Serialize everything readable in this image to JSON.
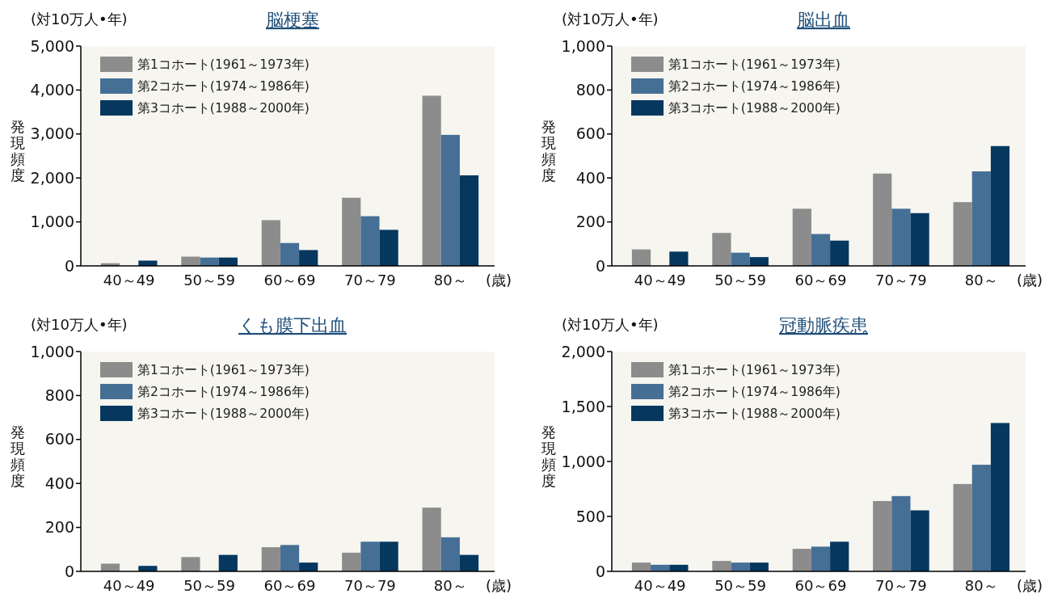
{
  "chart_data": [
    {
      "type": "bar",
      "title": "脳梗塞",
      "ylabel": "発現頻度",
      "xlabel": "(歳)",
      "annotations": [
        "(対10万人•年)"
      ],
      "categories": [
        "40～49",
        "50～59",
        "60～69",
        "70～79",
        "80～"
      ],
      "ylim": [
        0,
        5000
      ],
      "yticks": [
        {
          "value": 0,
          "label": "0"
        },
        {
          "value": 1000,
          "label": "1,000"
        },
        {
          "value": 2000,
          "label": "2,000"
        },
        {
          "value": 3000,
          "label": "3,000"
        },
        {
          "value": 4000,
          "label": "4,000"
        },
        {
          "value": 5000,
          "label": "5,000"
        }
      ],
      "legend": "top left",
      "series": [
        {
          "name": "第1コホート(1961～1973年)",
          "color": "#8c8c8c",
          "values": [
            60,
            210,
            1040,
            1550,
            3870
          ]
        },
        {
          "name": "第2コホート(1974～1986年)",
          "color": "#466f96",
          "values": [
            null,
            190,
            520,
            1130,
            2980
          ]
        },
        {
          "name": "第3コホート(1988～2000年)",
          "color": "#06385f",
          "values": [
            120,
            190,
            360,
            820,
            2060
          ]
        }
      ]
    },
    {
      "type": "bar",
      "title": "脳出血",
      "ylabel": "発現頻度",
      "xlabel": "(歳)",
      "annotations": [
        "(対10万人•年)"
      ],
      "categories": [
        "40～49",
        "50～59",
        "60～69",
        "70～79",
        "80～"
      ],
      "ylim": [
        0,
        1000
      ],
      "yticks": [
        0,
        200,
        400,
        600,
        800,
        {
          "value": 1000,
          "label": "1,000"
        }
      ],
      "legend": "top left",
      "series": [
        {
          "name": "第1コホート(1961～1973年)",
          "color": "#8c8c8c",
          "values": [
            75,
            150,
            260,
            420,
            290
          ]
        },
        {
          "name": "第2コホート(1974～1986年)",
          "color": "#466f96",
          "values": [
            null,
            60,
            145,
            260,
            430
          ]
        },
        {
          "name": "第3コホート(1988～2000年)",
          "color": "#06385f",
          "values": [
            65,
            40,
            115,
            240,
            545
          ]
        }
      ]
    },
    {
      "type": "bar",
      "title": "くも膜下出血",
      "ylabel": "発現頻度",
      "xlabel": "(歳)",
      "annotations": [
        "(対10万人•年)"
      ],
      "categories": [
        "40～49",
        "50～59",
        "60～69",
        "70～79",
        "80～"
      ],
      "ylim": [
        0,
        1000
      ],
      "yticks": [
        0,
        200,
        400,
        600,
        800,
        {
          "value": 1000,
          "label": "1,000"
        }
      ],
      "legend": "top left",
      "series": [
        {
          "name": "第1コホート(1961～1973年)",
          "color": "#8c8c8c",
          "values": [
            35,
            65,
            110,
            85,
            290
          ]
        },
        {
          "name": "第2コホート(1974～1986年)",
          "color": "#466f96",
          "values": [
            null,
            null,
            120,
            135,
            155
          ]
        },
        {
          "name": "第3コホート(1988～2000年)",
          "color": "#06385f",
          "values": [
            25,
            75,
            40,
            135,
            75
          ]
        }
      ]
    },
    {
      "type": "bar",
      "title": "冠動脈疾患",
      "ylabel": "発現頻度",
      "xlabel": "(歳)",
      "annotations": [
        "(対10万人•年)"
      ],
      "categories": [
        "40～49",
        "50～59",
        "60～69",
        "70～79",
        "80～"
      ],
      "ylim": [
        0,
        2000
      ],
      "yticks": [
        0,
        500,
        {
          "value": 1000,
          "label": "1,000"
        },
        {
          "value": 1500,
          "label": "1,500"
        },
        {
          "value": 2000,
          "label": "2,000"
        }
      ],
      "legend": "top left",
      "series": [
        {
          "name": "第1コホート(1961～1973年)",
          "color": "#8c8c8c",
          "values": [
            80,
            95,
            205,
            640,
            795
          ]
        },
        {
          "name": "第2コホート(1974～1986年)",
          "color": "#466f96",
          "values": [
            60,
            80,
            225,
            685,
            970
          ]
        },
        {
          "name": "第3コホート(1988～2000年)",
          "color": "#06385f",
          "values": [
            60,
            80,
            270,
            555,
            1350
          ]
        }
      ]
    }
  ]
}
